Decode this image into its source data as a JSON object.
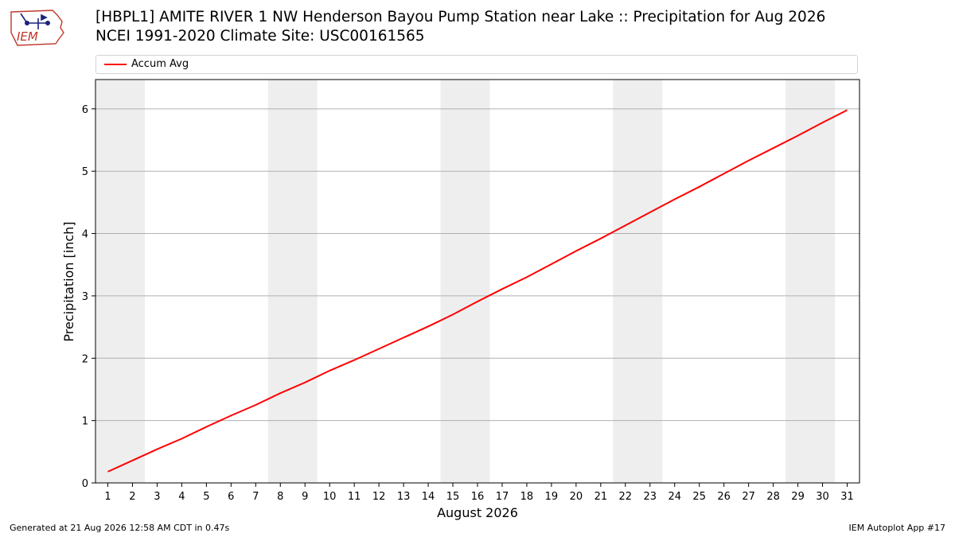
{
  "logo": {
    "text": "IEM"
  },
  "header": {
    "title_line1": "[HBPL1] AMITE RIVER 1 NW Henderson Bayou Pump Station near Lake :: Precipitation for Aug 2026",
    "title_line2": "NCEI 1991-2020 Climate Site: USC00161565"
  },
  "footer": {
    "left": "Generated at 21 Aug 2026 12:58 AM CDT in 0.47s",
    "right": "IEM Autoplot App #17"
  },
  "colors": {
    "series": "#ff0000",
    "weekend_shade": "#eeeeee",
    "grid": "#b0b0b0"
  },
  "chart_data": {
    "type": "line",
    "title": "[HBPL1] AMITE RIVER 1 NW Henderson Bayou Pump Station near Lake :: Precipitation for Aug 2026",
    "subtitle": "NCEI 1991-2020 Climate Site: USC00161565",
    "xlabel": "August 2026",
    "ylabel": "Precipitation [inch]",
    "xlim": [
      0.5,
      31.5
    ],
    "ylim": [
      0,
      6.47
    ],
    "x_ticks": [
      1,
      2,
      3,
      4,
      5,
      6,
      7,
      8,
      9,
      10,
      11,
      12,
      13,
      14,
      15,
      16,
      17,
      18,
      19,
      20,
      21,
      22,
      23,
      24,
      25,
      26,
      27,
      28,
      29,
      30,
      31
    ],
    "y_ticks": [
      0,
      1,
      2,
      3,
      4,
      5,
      6
    ],
    "grid": "y-major",
    "legend_placement": "top",
    "shaded_day_ranges": [
      [
        1,
        2
      ],
      [
        8,
        9
      ],
      [
        15,
        16
      ],
      [
        22,
        23
      ],
      [
        29,
        30
      ]
    ],
    "series": [
      {
        "name": "Accum Avg",
        "color": "#ff0000",
        "x": [
          1,
          2,
          3,
          4,
          5,
          6,
          7,
          8,
          9,
          10,
          11,
          12,
          13,
          14,
          15,
          16,
          17,
          18,
          19,
          20,
          21,
          22,
          23,
          24,
          25,
          26,
          27,
          28,
          29,
          30,
          31
        ],
        "values": [
          0.18,
          0.36,
          0.54,
          0.71,
          0.9,
          1.08,
          1.25,
          1.44,
          1.61,
          1.8,
          1.97,
          2.15,
          2.33,
          2.51,
          2.7,
          2.91,
          3.11,
          3.3,
          3.51,
          3.72,
          3.92,
          4.13,
          4.34,
          4.55,
          4.75,
          4.96,
          5.17,
          5.37,
          5.57,
          5.78,
          5.98
        ]
      }
    ]
  }
}
